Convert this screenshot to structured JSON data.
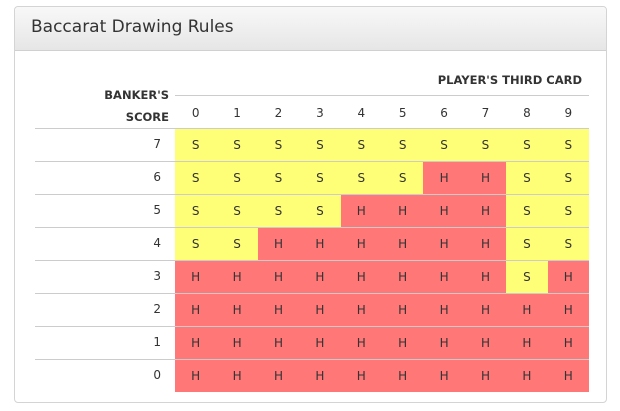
{
  "title": "Baccarat Drawing Rules",
  "player_header": "PLAYER'S THIRD CARD",
  "banker_header_line1": "BANKER'S",
  "banker_header_line2": "SCORE",
  "columns": [
    "0",
    "1",
    "2",
    "3",
    "4",
    "5",
    "6",
    "7",
    "8",
    "9"
  ],
  "colors": {
    "S": "#ffff77",
    "H": "#ff7777"
  },
  "rows": [
    {
      "score": "7",
      "cells": [
        "S",
        "S",
        "S",
        "S",
        "S",
        "S",
        "S",
        "S",
        "S",
        "S"
      ]
    },
    {
      "score": "6",
      "cells": [
        "S",
        "S",
        "S",
        "S",
        "S",
        "S",
        "H",
        "H",
        "S",
        "S"
      ]
    },
    {
      "score": "5",
      "cells": [
        "S",
        "S",
        "S",
        "S",
        "H",
        "H",
        "H",
        "H",
        "S",
        "S"
      ]
    },
    {
      "score": "4",
      "cells": [
        "S",
        "S",
        "H",
        "H",
        "H",
        "H",
        "H",
        "H",
        "S",
        "S"
      ]
    },
    {
      "score": "3",
      "cells": [
        "H",
        "H",
        "H",
        "H",
        "H",
        "H",
        "H",
        "H",
        "S",
        "H"
      ]
    },
    {
      "score": "2",
      "cells": [
        "H",
        "H",
        "H",
        "H",
        "H",
        "H",
        "H",
        "H",
        "H",
        "H"
      ]
    },
    {
      "score": "1",
      "cells": [
        "H",
        "H",
        "H",
        "H",
        "H",
        "H",
        "H",
        "H",
        "H",
        "H"
      ]
    },
    {
      "score": "0",
      "cells": [
        "H",
        "H",
        "H",
        "H",
        "H",
        "H",
        "H",
        "H",
        "H",
        "H"
      ]
    }
  ]
}
